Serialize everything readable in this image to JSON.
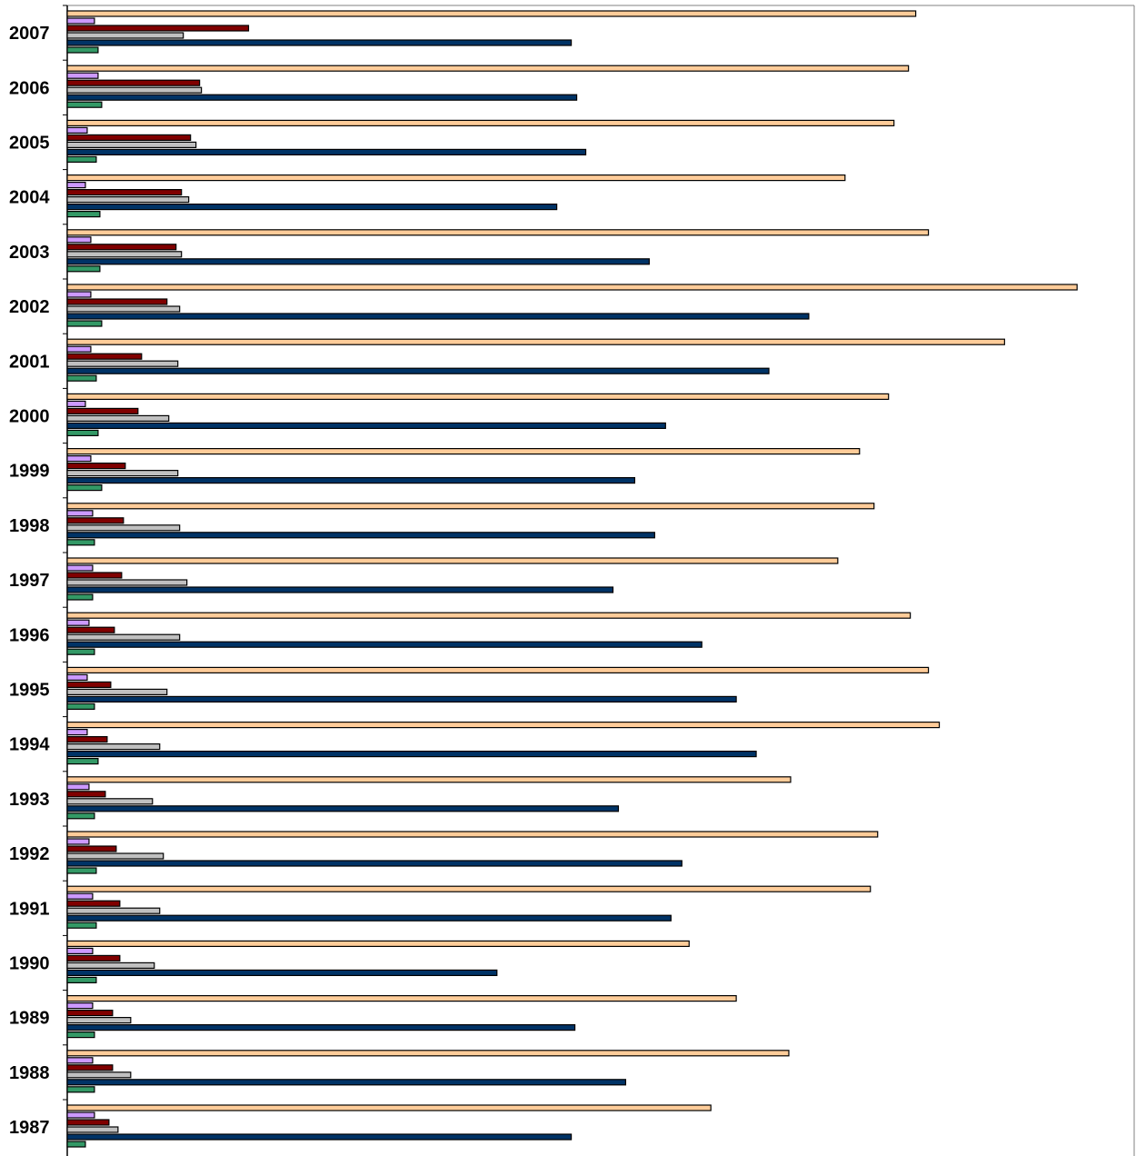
{
  "chart_data": {
    "type": "bar",
    "orientation": "horizontal",
    "title": "",
    "xlabel": "",
    "ylabel": "",
    "xlim": [
      0,
      1177
    ],
    "grid": false,
    "legend": "none",
    "categories": [
      "2007",
      "2006",
      "2005",
      "2004",
      "2003",
      "2002",
      "2001",
      "2000",
      "1999",
      "1998",
      "1997",
      "1996",
      "1995",
      "1994",
      "1993",
      "1992",
      "1991",
      "1990",
      "1989",
      "1988",
      "1987"
    ],
    "series": [
      {
        "color": "#FFCC99",
        "values": [
          936,
          928,
          912,
          858,
          950,
          1114,
          1034,
          906,
          874,
          890,
          850,
          930,
          950,
          962,
          798,
          894,
          886,
          686,
          738,
          796,
          710
        ]
      },
      {
        "color": "#CC99FF",
        "values": [
          30,
          34,
          22,
          20,
          26,
          26,
          26,
          20,
          26,
          28,
          28,
          24,
          22,
          22,
          24,
          24,
          28,
          28,
          28,
          28,
          30
        ]
      },
      {
        "color": "#800000",
        "values": [
          200,
          146,
          136,
          126,
          120,
          110,
          82,
          78,
          64,
          62,
          60,
          52,
          48,
          44,
          42,
          54,
          58,
          58,
          50,
          50,
          46
        ]
      },
      {
        "color": "#C0C0C0",
        "values": [
          128,
          148,
          142,
          134,
          126,
          124,
          122,
          112,
          122,
          124,
          132,
          124,
          110,
          102,
          94,
          106,
          102,
          96,
          70,
          70,
          56
        ]
      },
      {
        "color": "#003366",
        "values": [
          556,
          562,
          572,
          540,
          642,
          818,
          774,
          660,
          626,
          648,
          602,
          700,
          738,
          760,
          608,
          678,
          666,
          474,
          560,
          616,
          556
        ]
      },
      {
        "color": "#339966",
        "values": [
          34,
          38,
          32,
          36,
          36,
          38,
          32,
          34,
          38,
          30,
          28,
          30,
          30,
          34,
          30,
          32,
          32,
          32,
          30,
          30,
          20
        ]
      }
    ]
  }
}
